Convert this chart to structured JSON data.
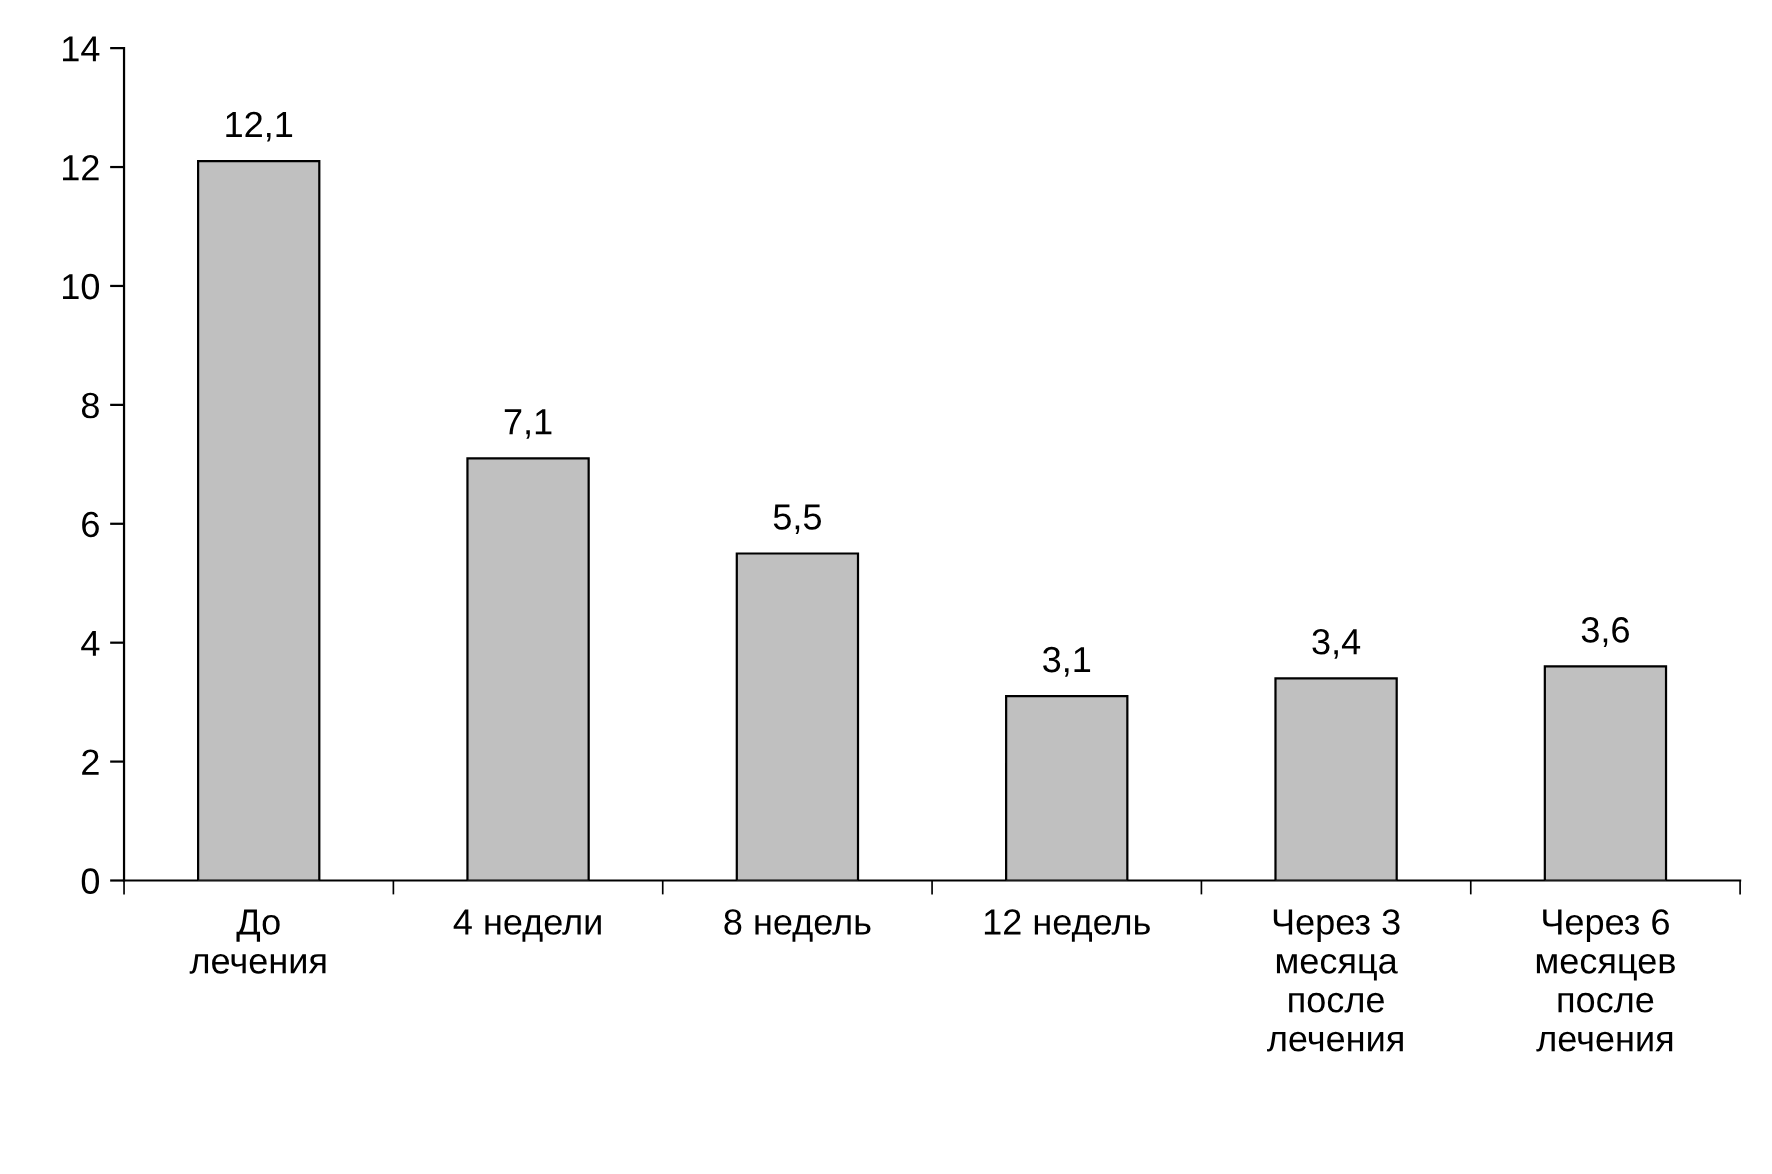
{
  "chart_data": {
    "type": "bar",
    "categories": [
      "До\nлечения",
      "4 недели",
      "8 недель",
      "12 недель",
      "Через 3\nмесяца\nпосле\nлечения",
      "Через 6\nмесяцев\nпосле\nлечения"
    ],
    "values": [
      12.1,
      7.1,
      5.5,
      3.1,
      3.4,
      3.6
    ],
    "value_labels": [
      "12,1",
      "7,1",
      "5,5",
      "3,1",
      "3,4",
      "3,6"
    ],
    "color": "#c0c0c0",
    "ylim": [
      0,
      14
    ],
    "yticks": [
      0,
      2,
      4,
      6,
      8,
      10,
      12,
      14
    ],
    "grid": false,
    "legend": false
  }
}
